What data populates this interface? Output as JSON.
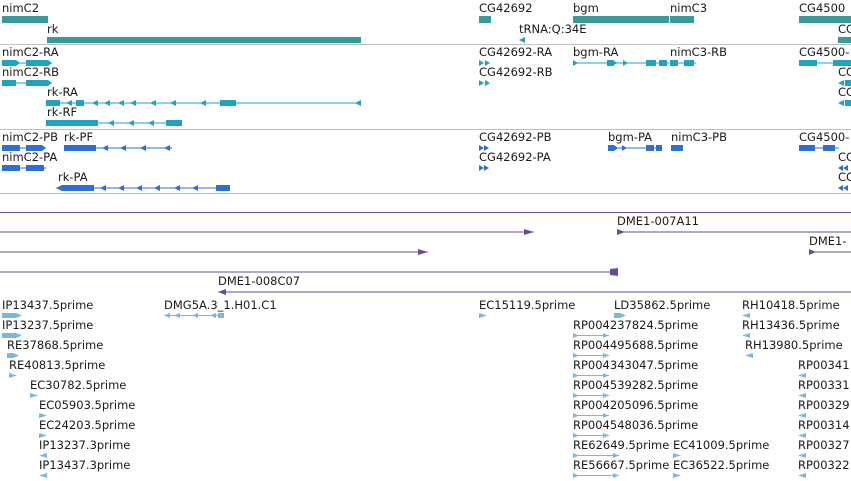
{
  "tracks": {
    "genes": {
      "labels": [
        "nimC2",
        "rk",
        "CG42692",
        "bgm",
        "nimC3",
        "CG4500",
        "CG",
        "tRNA:Q:34E"
      ],
      "color": "#3a9a9a"
    },
    "transcripts_ra": {
      "labels": [
        "nimC2-RA",
        "nimC2-RB",
        "rk-RA",
        "rk-RF",
        "CG42692-RA",
        "CG42692-RB",
        "bgm-RA",
        "nimC3-RB",
        "CG4500-",
        "CC",
        "CC"
      ],
      "color": "#1fa3bf"
    },
    "transcripts_pb": {
      "labels": [
        "nimC2-PB",
        "rk-PF",
        "nimC2-PA",
        "rk-PA",
        "CG42692-PB",
        "CG42692-PA",
        "bgm-PA",
        "nimC3-PB",
        "CG4500-",
        "CC",
        "CC"
      ],
      "color": "#2f6fd0"
    },
    "clones": {
      "labels": [
        "DME1-007A11",
        "DME1-",
        "DME1-008C07"
      ],
      "color": "#6b4a9e"
    },
    "ests": {
      "labels": [
        "IP13437.5prime",
        "DMG5A.3_1.H01.C1",
        "EC15119.5prime",
        "LD35862.5prime",
        "RH10418.5prime",
        "IP13237.5prime",
        "RP004237824.5prime",
        "RH13436.5prime",
        "RE37868.5prime",
        "RP004495688.5prime",
        "RH13980.5prime",
        "RE40813.5prime",
        "RP004343047.5prime",
        "RP00341",
        "EC30782.5prime",
        "RP004539282.5prime",
        "RP00331",
        "EC05903.5prime",
        "RP004205096.5prime",
        "RP00329",
        "EC24203.5prime",
        "RP004548036.5prime",
        "RP00314",
        "IP13237.3prime",
        "RE62649.5prime",
        "EC41009.5prime",
        "RP00327",
        "IP13437.3prime",
        "RE56667.5prime",
        "EC36522.5prime",
        "RP00322"
      ],
      "color": "#7bb8e0"
    }
  }
}
